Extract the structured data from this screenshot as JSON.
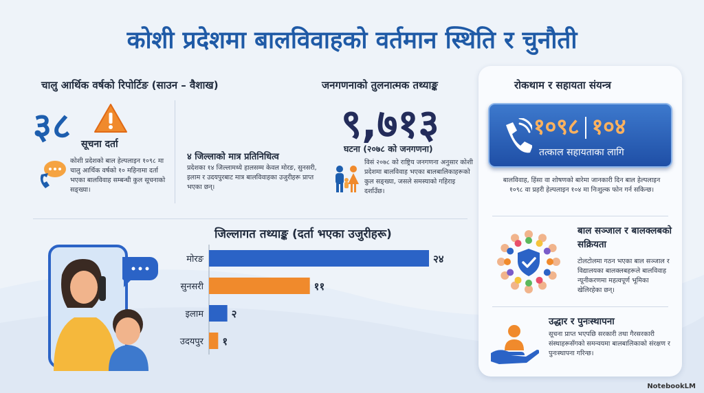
{
  "title": "कोशी प्रदेशमा बालविवाहको वर्तमान स्थिति र चुनौती",
  "reporting": {
    "heading": "चालु आर्थिक वर्षको रिपोर्टिङ (साउन – वैशाख)",
    "big_number": "३८",
    "label": "सूचना दर्ता",
    "description": "कोशी प्रदेशको बाल हेल्पलाइन १०९८ मा चालु आर्थिक वर्षको १० महिनामा दर्ता भएका बालविवाह सम्बन्धी कुल सूचनाको सङ्ख्या।",
    "districts_heading": "४ जिल्लाको मात्र प्रतिनिधित्व",
    "districts_description": "प्रदेशका १४ जिल्लामध्ये हालसम्म केवल मोरङ, सुनसरी, इलाम र उदयपुरबाट मात्र बालविवाहका उजुरीहरू प्राप्त भएका छन्।"
  },
  "census": {
    "heading": "जनगणनाको तुलनात्मक तथ्याङ्क",
    "big_number": "९,७१३",
    "sub": "घटना (२०७८ को जनगणना)",
    "description": "विसं २०७८ को राष्ट्रिय जनगणना अनुसार कोशी प्रदेशमा बालविवाह भएका बालबालिकाहरूको कुल सङ्ख्या, जसले समस्याको गहिराइ दर्शाउँछ।"
  },
  "support": {
    "heading": "रोकथाम र सहायता संयन्त्र",
    "hotline_1": "१०९८",
    "hotline_2": "१०४",
    "hotline_sub": "तत्काल सहायताका लागि",
    "hotline_description": "बालविवाह, हिंसा वा शोषणको बारेमा जानकारी दिन बाल हेल्पलाइन १०९८ वा प्रहरी हेल्पलाइन १०४ मा निःशुल्क फोन गर्न सकिन्छ।",
    "network_heading": "बाल सञ्जाल र बालक्लबको सक्रियता",
    "network_description": "टोलटोलमा गठन भएका बाल सञ्जाल र विद्यालयका बालक्लबहरूले बालविवाह न्यूनीकरणमा महत्वपूर्ण भूमिका खेलिरहेका छन्।",
    "rescue_heading": "उद्धार र पुनःस्थापना",
    "rescue_description": "सूचना प्राप्त भएपछि सरकारी तथा गैरसरकारी संस्थाहरूसँगको समन्वयमा बालबालिकाको संरक्षण र पुनःस्थापना गरिन्छ।"
  },
  "chart_data": {
    "type": "bar",
    "orientation": "horizontal",
    "title": "जिल्लागत तथ्याङ्क (दर्ता भएका उजुरीहरू)",
    "categories": [
      "मोरङ",
      "सुनसरी",
      "इलाम",
      "उदयपुर"
    ],
    "values": [
      24,
      11,
      2,
      1
    ],
    "value_labels": [
      "२४",
      "११",
      "२",
      "१"
    ],
    "colors": [
      "#2b63c6",
      "#f08a2c",
      "#2b63c6",
      "#f08a2c"
    ]
  },
  "brand": "NotebookLM",
  "colors": {
    "primary": "#1f5aa6",
    "accent": "#f08a2c",
    "dark": "#232c5a"
  }
}
